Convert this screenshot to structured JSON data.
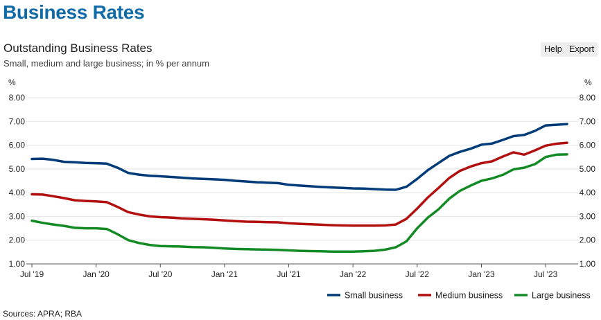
{
  "header": {
    "page_title": "Business Rates",
    "help_label": "Help",
    "export_label": "Export"
  },
  "footer": {
    "sources": "Sources: APRA; RBA"
  },
  "colors": {
    "small": "#003b79",
    "medium": "#b20f0f",
    "large": "#138a24",
    "grid": "#e3e3e3",
    "title": "#0f6aa8"
  },
  "chart_data": {
    "type": "line",
    "title": "Outstanding Business Rates",
    "subtitle": "Small, medium and large business; in % per annum",
    "ylabel_left": "%",
    "ylabel_right": "%",
    "ylim": [
      1,
      8
    ],
    "yticks": [
      "1.00",
      "2.00",
      "3.00",
      "4.00",
      "5.00",
      "6.00",
      "7.00",
      "8.00"
    ],
    "xticks": [
      "Jul '19",
      "Jan '20",
      "Jul '20",
      "Jan '21",
      "Jul '21",
      "Jan '22",
      "Jul '22",
      "Jan '23",
      "Jul '23"
    ],
    "grid": true,
    "legend_position": "bottom-right",
    "x": [
      "2019-07",
      "2019-08",
      "2019-09",
      "2019-10",
      "2019-11",
      "2019-12",
      "2020-01",
      "2020-02",
      "2020-03",
      "2020-04",
      "2020-05",
      "2020-06",
      "2020-07",
      "2020-08",
      "2020-09",
      "2020-10",
      "2020-11",
      "2020-12",
      "2021-01",
      "2021-02",
      "2021-03",
      "2021-04",
      "2021-05",
      "2021-06",
      "2021-07",
      "2021-08",
      "2021-09",
      "2021-10",
      "2021-11",
      "2021-12",
      "2022-01",
      "2022-02",
      "2022-03",
      "2022-04",
      "2022-05",
      "2022-06",
      "2022-07",
      "2022-08",
      "2022-09",
      "2022-10",
      "2022-11",
      "2022-12",
      "2023-01",
      "2023-02",
      "2023-03",
      "2023-04",
      "2023-05",
      "2023-06",
      "2023-07",
      "2023-08",
      "2023-09"
    ],
    "series": [
      {
        "name": "Small business",
        "color_key": "small",
        "values": [
          5.42,
          5.43,
          5.38,
          5.3,
          5.28,
          5.25,
          5.24,
          5.22,
          5.05,
          4.83,
          4.76,
          4.71,
          4.69,
          4.66,
          4.63,
          4.6,
          4.58,
          4.56,
          4.54,
          4.5,
          4.47,
          4.44,
          4.42,
          4.4,
          4.33,
          4.3,
          4.27,
          4.24,
          4.22,
          4.2,
          4.18,
          4.17,
          4.15,
          4.13,
          4.12,
          4.25,
          4.58,
          4.95,
          5.25,
          5.55,
          5.72,
          5.85,
          6.02,
          6.07,
          6.22,
          6.38,
          6.43,
          6.6,
          6.83,
          6.86,
          6.89
        ]
      },
      {
        "name": "Medium business",
        "color_key": "medium",
        "values": [
          3.93,
          3.92,
          3.85,
          3.77,
          3.68,
          3.65,
          3.63,
          3.6,
          3.4,
          3.18,
          3.08,
          3.0,
          2.97,
          2.95,
          2.92,
          2.9,
          2.88,
          2.86,
          2.83,
          2.8,
          2.78,
          2.77,
          2.76,
          2.75,
          2.71,
          2.69,
          2.67,
          2.65,
          2.63,
          2.62,
          2.61,
          2.61,
          2.61,
          2.62,
          2.66,
          2.9,
          3.33,
          3.8,
          4.2,
          4.62,
          4.92,
          5.1,
          5.24,
          5.32,
          5.52,
          5.7,
          5.6,
          5.78,
          5.98,
          6.06,
          6.1
        ]
      },
      {
        "name": "Large business",
        "color_key": "large",
        "values": [
          2.82,
          2.73,
          2.66,
          2.6,
          2.52,
          2.5,
          2.5,
          2.47,
          2.25,
          2.0,
          1.88,
          1.8,
          1.75,
          1.74,
          1.73,
          1.71,
          1.7,
          1.68,
          1.65,
          1.63,
          1.62,
          1.61,
          1.6,
          1.59,
          1.57,
          1.55,
          1.54,
          1.53,
          1.52,
          1.52,
          1.52,
          1.53,
          1.55,
          1.6,
          1.7,
          1.95,
          2.5,
          2.95,
          3.3,
          3.75,
          4.08,
          4.3,
          4.5,
          4.6,
          4.75,
          4.98,
          5.05,
          5.2,
          5.5,
          5.6,
          5.61
        ]
      }
    ]
  }
}
